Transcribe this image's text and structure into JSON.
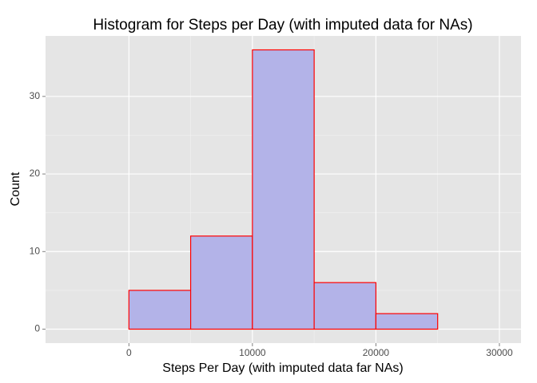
{
  "chart_data": {
    "type": "histogram",
    "title": "Histogram for Steps per Day (with imputed data for NAs)",
    "x_label": "Steps Per Day (with imputed data far NAs)",
    "y_label": "Count",
    "bins": [
      -5000,
      0,
      5000,
      10000,
      15000,
      20000,
      25000,
      30000
    ],
    "values": [
      0,
      5,
      12,
      36,
      6,
      2,
      0
    ],
    "color": "#b3b3e8",
    "edge_color": "#ff0000",
    "xlim": [
      -6750,
      31750
    ],
    "ylim": [
      -1.8,
      37.8
    ],
    "xticks": [
      0,
      10000,
      20000,
      30000
    ],
    "yticks": [
      0,
      10,
      20,
      30
    ],
    "grid": true
  }
}
